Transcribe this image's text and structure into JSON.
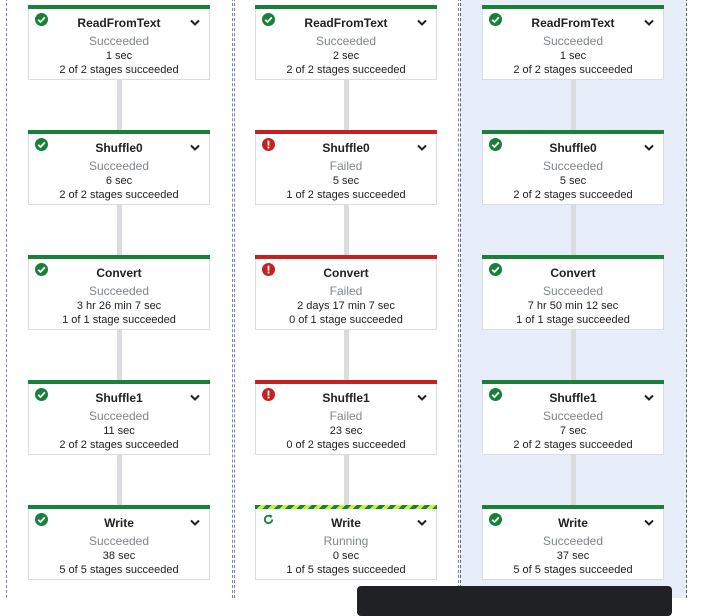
{
  "colors": {
    "succeeded": "#188038",
    "failed": "#c5221f",
    "running_stripe": "#c6f23a",
    "selected_column_bg": "#e8eef9"
  },
  "jobs": [
    {
      "selected": false,
      "steps": [
        {
          "name": "ReadFromText",
          "status": "Succeeded",
          "icon": "check-circle-icon",
          "duration": "1 sec",
          "stages": "2 of 2 stages succeeded",
          "expandable": true
        },
        {
          "name": "Shuffle0",
          "status": "Succeeded",
          "icon": "check-circle-icon",
          "duration": "6 sec",
          "stages": "2 of 2 stages succeeded",
          "expandable": true
        },
        {
          "name": "Convert",
          "status": "Succeeded",
          "icon": "check-circle-icon",
          "duration": "3 hr 26 min 7 sec",
          "stages": "1 of 1 stage succeeded",
          "expandable": false
        },
        {
          "name": "Shuffle1",
          "status": "Succeeded",
          "icon": "check-circle-icon",
          "duration": "11 sec",
          "stages": "2 of 2 stages succeeded",
          "expandable": true
        },
        {
          "name": "Write",
          "status": "Succeeded",
          "icon": "check-circle-icon",
          "duration": "38 sec",
          "stages": "5 of 5 stages succeeded",
          "expandable": true
        }
      ]
    },
    {
      "selected": false,
      "steps": [
        {
          "name": "ReadFromText",
          "status": "Succeeded",
          "icon": "check-circle-icon",
          "duration": "2 sec",
          "stages": "2 of 2 stages succeeded",
          "expandable": true
        },
        {
          "name": "Shuffle0",
          "status": "Failed",
          "icon": "error-icon",
          "duration": "5 sec",
          "stages": "1 of 2 stages succeeded",
          "expandable": true
        },
        {
          "name": "Convert",
          "status": "Failed",
          "icon": "error-icon",
          "duration": "2 days 17 min 7 sec",
          "stages": "0 of 1 stage succeeded",
          "expandable": false
        },
        {
          "name": "Shuffle1",
          "status": "Failed",
          "icon": "error-icon",
          "duration": "23 sec",
          "stages": "0 of 2 stages succeeded",
          "expandable": true
        },
        {
          "name": "Write",
          "status": "Running",
          "icon": "refresh-icon",
          "duration": "0 sec",
          "stages": "1 of 5 stages succeeded",
          "expandable": true
        }
      ]
    },
    {
      "selected": true,
      "steps": [
        {
          "name": "ReadFromText",
          "status": "Succeeded",
          "icon": "check-circle-icon",
          "duration": "1 sec",
          "stages": "2 of 2 stages succeeded",
          "expandable": true
        },
        {
          "name": "Shuffle0",
          "status": "Succeeded",
          "icon": "check-circle-icon",
          "duration": "5 sec",
          "stages": "2 of 2 stages succeeded",
          "expandable": true
        },
        {
          "name": "Convert",
          "status": "Succeeded",
          "icon": "check-circle-icon",
          "duration": "7 hr 50 min 12 sec",
          "stages": "1 of 1 stage succeeded",
          "expandable": false
        },
        {
          "name": "Shuffle1",
          "status": "Succeeded",
          "icon": "check-circle-icon",
          "duration": "7 sec",
          "stages": "2 of 2 stages succeeded",
          "expandable": true
        },
        {
          "name": "Write",
          "status": "Succeeded",
          "icon": "check-circle-icon",
          "duration": "37 sec",
          "stages": "5 of 5 stages succeeded",
          "expandable": true
        }
      ]
    }
  ]
}
